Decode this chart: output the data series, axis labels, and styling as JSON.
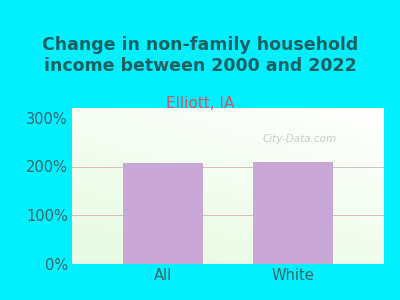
{
  "title": "Change in non-family household\nincome between 2000 and 2022",
  "subtitle": "Elliott, IA",
  "categories": [
    "All",
    "White"
  ],
  "values": [
    207,
    210
  ],
  "bar_color": "#c9a8d8",
  "background_color": "#00f0ff",
  "title_color": "#1a6060",
  "subtitle_color": "#cc5566",
  "tick_label_color": "#336666",
  "ytick_labels": [
    "0%",
    "100%",
    "200%",
    "300%"
  ],
  "ytick_values": [
    0,
    100,
    200,
    300
  ],
  "ylim": [
    0,
    320
  ],
  "grid_color": "#ddbbbb",
  "watermark": "City-Data.com",
  "title_fontsize": 12.5,
  "subtitle_fontsize": 11,
  "tick_fontsize": 10.5,
  "bar_width": 0.62
}
